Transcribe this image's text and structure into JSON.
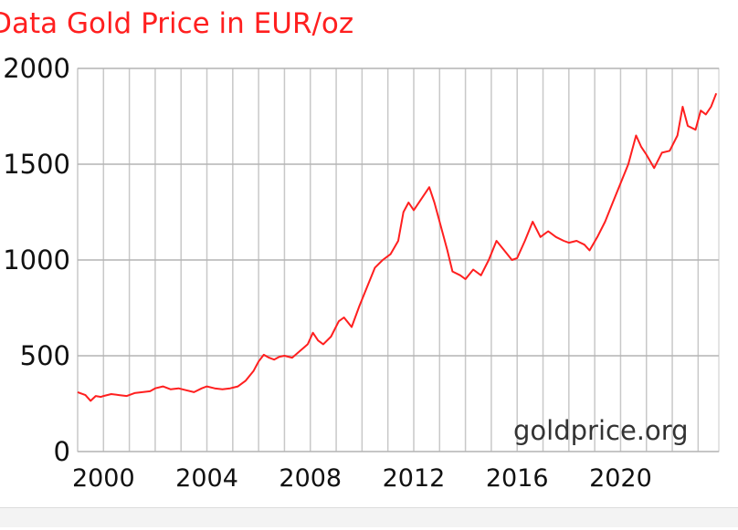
{
  "chart_data": {
    "type": "line",
    "title": "ll Data Gold Price in EUR/oz",
    "xlabel": "",
    "ylabel": "",
    "watermark": "goldprice.org",
    "xlim": [
      1999.0,
      2023.8
    ],
    "ylim": [
      0,
      2000
    ],
    "x_ticks": [
      "2000",
      "2004",
      "2008",
      "2012",
      "2016",
      "2020"
    ],
    "y_ticks": [
      "0",
      "500",
      "1000",
      "1500",
      "2000"
    ],
    "grid": true,
    "line_color": "#ff1f1f",
    "series": [
      {
        "x": [
          1999.0,
          1999.3,
          1999.5,
          1999.7,
          1999.9,
          2000.0,
          2000.3,
          2000.6,
          2000.9,
          2001.2,
          2001.5,
          2001.8,
          2002.0,
          2002.3,
          2002.6,
          2002.9,
          2003.2,
          2003.5,
          2003.8,
          2004.0,
          2004.3,
          2004.6,
          2004.9,
          2005.2,
          2005.5,
          2005.8,
          2006.0,
          2006.2,
          2006.4,
          2006.6,
          2006.8,
          2007.0,
          2007.3,
          2007.6,
          2007.9,
          2008.1,
          2008.3,
          2008.5,
          2008.8,
          2009.1,
          2009.3,
          2009.6,
          2009.9,
          2010.2,
          2010.5,
          2010.8,
          2011.1,
          2011.4,
          2011.6,
          2011.8,
          2012.0,
          2012.3,
          2012.6,
          2012.8,
          2013.0,
          2013.3,
          2013.5,
          2013.8,
          2014.0,
          2014.3,
          2014.6,
          2014.9,
          2015.2,
          2015.5,
          2015.8,
          2016.0,
          2016.3,
          2016.6,
          2016.9,
          2017.2,
          2017.5,
          2017.8,
          2018.0,
          2018.3,
          2018.6,
          2018.8,
          2019.1,
          2019.4,
          2019.7,
          2020.0,
          2020.3,
          2020.6,
          2020.8,
          2021.0,
          2021.3,
          2021.6,
          2021.9,
          2022.2,
          2022.4,
          2022.6,
          2022.9,
          2023.1,
          2023.3,
          2023.5,
          2023.7
        ],
        "values": [
          310,
          295,
          265,
          290,
          285,
          290,
          300,
          295,
          290,
          305,
          310,
          315,
          330,
          340,
          325,
          330,
          320,
          310,
          330,
          340,
          330,
          325,
          330,
          340,
          370,
          420,
          470,
          505,
          490,
          480,
          495,
          500,
          490,
          525,
          560,
          620,
          580,
          560,
          600,
          680,
          700,
          650,
          760,
          860,
          960,
          1000,
          1030,
          1100,
          1250,
          1300,
          1260,
          1320,
          1380,
          1300,
          1200,
          1050,
          940,
          920,
          900,
          950,
          920,
          1000,
          1100,
          1050,
          1000,
          1010,
          1100,
          1200,
          1120,
          1150,
          1120,
          1100,
          1090,
          1100,
          1080,
          1050,
          1120,
          1200,
          1300,
          1400,
          1500,
          1650,
          1590,
          1550,
          1480,
          1560,
          1570,
          1650,
          1800,
          1700,
          1680,
          1780,
          1760,
          1800,
          1870
        ]
      }
    ]
  }
}
